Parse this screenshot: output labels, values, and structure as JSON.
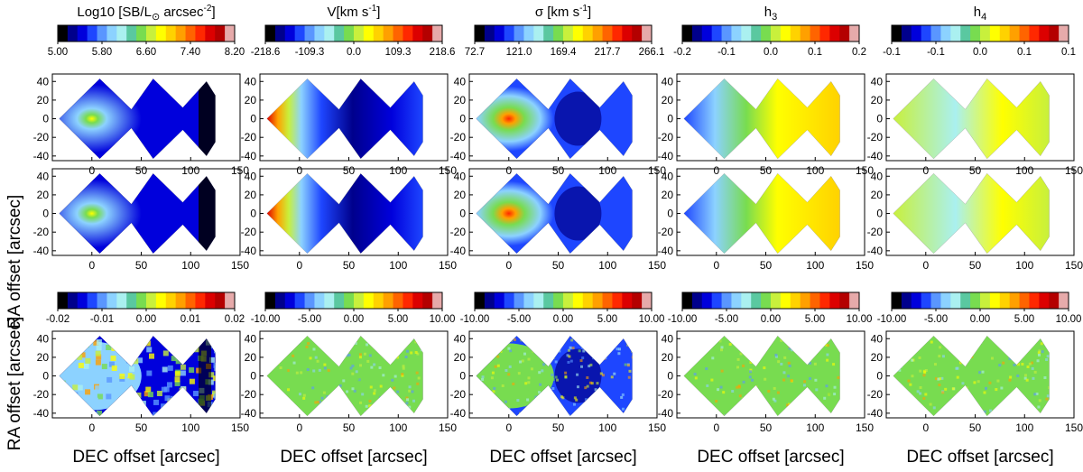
{
  "figure": {
    "col_titles": [
      {
        "main": "Log10 [SB/L",
        "sub": "⊙",
        "tail": " arcsec",
        "sup": "-2",
        "end": "]"
      },
      {
        "main": "V[km s",
        "sub": "",
        "tail": "",
        "sup": "-1",
        "end": "]"
      },
      {
        "main": "σ [km s",
        "sub": "",
        "tail": "",
        "sup": "-1",
        "end": "]"
      },
      {
        "main": "h",
        "sub": "3",
        "tail": "",
        "sup": "",
        "end": ""
      },
      {
        "main": "h",
        "sub": "4",
        "tail": "",
        "sup": "",
        "end": ""
      }
    ],
    "top_colorbar_ticks": [
      [
        "5.00",
        "5.80",
        "6.60",
        "7.40",
        "8.20"
      ],
      [
        "-218.6",
        "-109.3",
        "0.0",
        "109.3",
        "218.6"
      ],
      [
        "72.7",
        "121.0",
        "169.4",
        "217.7",
        "266.1"
      ],
      [
        "-0.2",
        "-0.1",
        "0.0",
        "0.1",
        "0.2"
      ],
      [
        "-0.1",
        "-0.1",
        "0.0",
        "0.1",
        "0.1"
      ]
    ],
    "resid_colorbar_ticks": [
      [
        "-0.02",
        "-0.01",
        "0.00",
        "0.01",
        "0.02"
      ],
      [
        "-10.00",
        "-5.00",
        "0.00",
        "5.00",
        "10.00"
      ],
      [
        "-10.00",
        "-5.00",
        "0.00",
        "5.00",
        "10.00"
      ],
      [
        "-10.00",
        "-5.00",
        "0.00",
        "5.00",
        "10.00"
      ],
      [
        "-10.00",
        "-5.00",
        "0.00",
        "5.00",
        "10.00"
      ]
    ],
    "colormap": [
      "#000000",
      "#00008c",
      "#0000dc",
      "#1e46ff",
      "#5a96ff",
      "#8cd2ff",
      "#aaf0f0",
      "#5ac8a0",
      "#78dc50",
      "#c8f03c",
      "#ffff00",
      "#ffd200",
      "#ffa000",
      "#ff6400",
      "#ff2800",
      "#dc0000",
      "#b40000",
      "#e6aaaa"
    ],
    "y_ticks": [
      "40",
      "20",
      "0",
      "-20",
      "-40"
    ],
    "x_ticks": [
      "0",
      "50",
      "100",
      "150"
    ],
    "y_label": "RA offset [arcsec]",
    "x_label": "DEC offset [arcsec]"
  }
}
